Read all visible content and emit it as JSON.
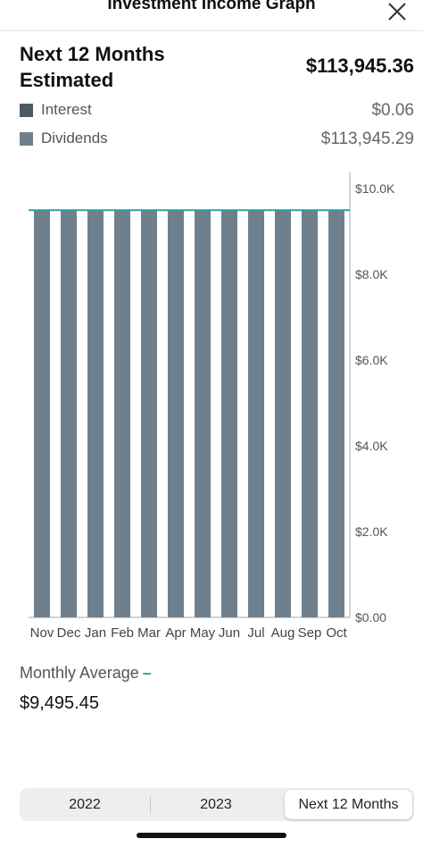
{
  "header": {
    "title": "Investment Income Graph",
    "close_icon": "close-icon"
  },
  "summary": {
    "title": "Next 12 Months Estimated",
    "total": "$113,945.36",
    "legend": [
      {
        "label": "Interest",
        "value": "$0.06",
        "color": "#4a5a67"
      },
      {
        "label": "Dividends",
        "value": "$113,945.29",
        "color": "#6e808d"
      }
    ]
  },
  "chart_data": {
    "type": "bar",
    "categories": [
      "Nov",
      "Dec",
      "Jan",
      "Feb",
      "Mar",
      "Apr",
      "May",
      "Jun",
      "Jul",
      "Aug",
      "Sep",
      "Oct"
    ],
    "series": [
      {
        "name": "Dividends",
        "values": [
          9495.44,
          9495.44,
          9495.44,
          9495.44,
          9495.44,
          9495.44,
          9495.44,
          9495.44,
          9495.44,
          9495.44,
          9495.44,
          9495.44
        ],
        "color": "#6e808d"
      },
      {
        "name": "Interest",
        "values": [
          0.005,
          0.005,
          0.005,
          0.005,
          0.005,
          0.005,
          0.005,
          0.005,
          0.005,
          0.005,
          0.005,
          0.005
        ],
        "color": "#4a5a67"
      }
    ],
    "stacked": true,
    "ylim": [
      0,
      10000
    ],
    "yticks": [
      0,
      2000,
      4000,
      6000,
      8000,
      10000
    ],
    "ytick_labels": [
      "$0.00",
      "$2.0K",
      "$4.0K",
      "$6.0K",
      "$8.0K",
      "$10.0K"
    ],
    "y_axis_side": "right",
    "average_line": 9495.45,
    "average_color": "#2a9fa3"
  },
  "average": {
    "label": "Monthly Average",
    "marker": "–",
    "value": "$9,495.45"
  },
  "tabs": [
    {
      "label": "2022",
      "active": false
    },
    {
      "label": "2023",
      "active": false
    },
    {
      "label": "Next 12 Months",
      "active": true
    }
  ]
}
